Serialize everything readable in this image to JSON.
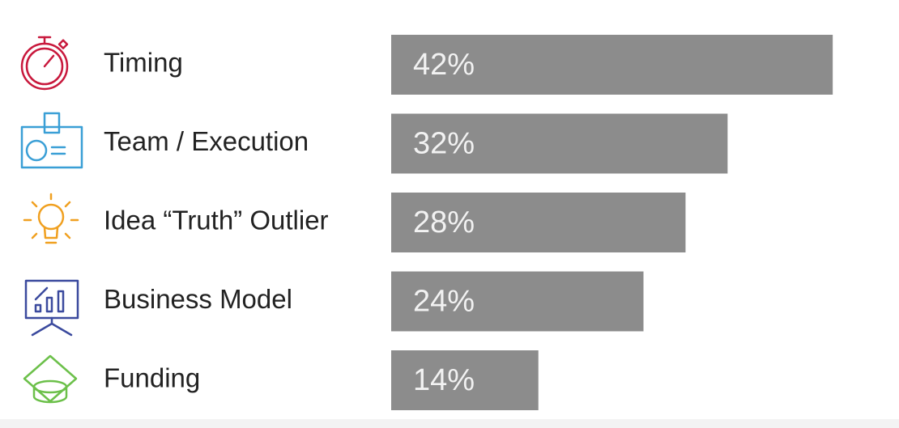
{
  "chart_data": {
    "type": "bar",
    "categories": [
      "Timing",
      "Team / Execution",
      "Idea “Truth” Outlier",
      "Business Model",
      "Funding"
    ],
    "values": [
      42,
      32,
      28,
      24,
      14
    ],
    "value_labels": [
      "42%",
      "32%",
      "28%",
      "24%",
      "14%"
    ],
    "color": "#8c8c8c"
  }
}
